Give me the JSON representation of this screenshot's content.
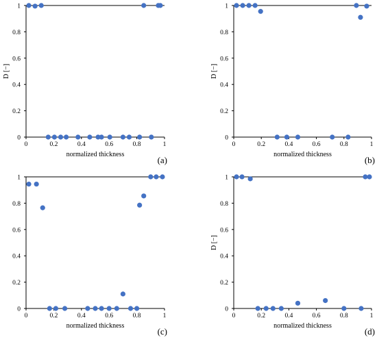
{
  "chart_data": [
    {
      "panel": "a",
      "type": "scatter",
      "xlabel": "normalized thickness",
      "ylabel": "D [−]",
      "xlim": [
        0,
        1
      ],
      "ylim": [
        0,
        1
      ],
      "xticks": [
        "0",
        "0.2",
        "0.4",
        "0.6",
        "0.8",
        "1"
      ],
      "yticks": [
        "0",
        "0.2",
        "0.4",
        "0.6",
        "0.8",
        "1"
      ],
      "grid": false,
      "color": "#4472C4",
      "points": [
        [
          0.02,
          1.0
        ],
        [
          0.065,
          0.995
        ],
        [
          0.11,
          1.0
        ],
        [
          0.16,
          0.0
        ],
        [
          0.205,
          0.0
        ],
        [
          0.25,
          0.0
        ],
        [
          0.29,
          0.0
        ],
        [
          0.375,
          0.0
        ],
        [
          0.46,
          0.0
        ],
        [
          0.52,
          0.0
        ],
        [
          0.545,
          0.0
        ],
        [
          0.605,
          0.0
        ],
        [
          0.7,
          0.0
        ],
        [
          0.745,
          0.0
        ],
        [
          0.82,
          0.0
        ],
        [
          0.905,
          0.0
        ],
        [
          0.85,
          1.0
        ],
        [
          0.955,
          1.0
        ],
        [
          0.97,
          1.0
        ]
      ]
    },
    {
      "panel": "b",
      "type": "scatter",
      "xlabel": "normalized thickness",
      "ylabel": "D [−]",
      "xlim": [
        0,
        1
      ],
      "ylim": [
        0,
        1
      ],
      "xticks": [
        "0",
        "0.2",
        "0.4",
        "0.6",
        "0.8",
        "1"
      ],
      "yticks": [
        "0",
        "0.2",
        "0.4",
        "0.6",
        "0.8",
        "1"
      ],
      "grid": false,
      "color": "#4472C4",
      "points": [
        [
          0.02,
          1.0
        ],
        [
          0.065,
          1.0
        ],
        [
          0.11,
          1.0
        ],
        [
          0.155,
          1.0
        ],
        [
          0.195,
          0.955
        ],
        [
          0.315,
          0.0
        ],
        [
          0.385,
          0.0
        ],
        [
          0.465,
          0.0
        ],
        [
          0.715,
          0.0
        ],
        [
          0.83,
          0.0
        ],
        [
          0.89,
          1.0
        ],
        [
          0.92,
          0.91
        ],
        [
          0.965,
          0.995
        ]
      ]
    },
    {
      "panel": "c",
      "type": "scatter",
      "xlabel": "normalized thickness",
      "ylabel": "",
      "xlim": [
        0,
        1
      ],
      "ylim": [
        0,
        1
      ],
      "xticks": [
        "0",
        "0.2",
        "0.4",
        "0.6",
        "0.8",
        "1"
      ],
      "yticks": [
        "0",
        "0.2",
        "0.4",
        "0.6",
        "0.8",
        "1"
      ],
      "grid": false,
      "color": "#4472C4",
      "points": [
        [
          0.02,
          0.945
        ],
        [
          0.075,
          0.945
        ],
        [
          0.12,
          0.765
        ],
        [
          0.17,
          0.0
        ],
        [
          0.215,
          0.0
        ],
        [
          0.28,
          0.0
        ],
        [
          0.445,
          0.0
        ],
        [
          0.5,
          0.0
        ],
        [
          0.545,
          0.0
        ],
        [
          0.6,
          0.0
        ],
        [
          0.655,
          0.0
        ],
        [
          0.7,
          0.11
        ],
        [
          0.755,
          0.0
        ],
        [
          0.8,
          0.0
        ],
        [
          0.82,
          0.785
        ],
        [
          0.85,
          0.855
        ],
        [
          0.9,
          1.0
        ],
        [
          0.94,
          1.0
        ],
        [
          0.985,
          1.0
        ]
      ]
    },
    {
      "panel": "d",
      "type": "scatter",
      "xlabel": "normalized thickness",
      "ylabel": "D [−]",
      "xlim": [
        0,
        1
      ],
      "ylim": [
        0,
        1
      ],
      "xticks": [
        "0",
        "0.2",
        "0.4",
        "0.6",
        "0.8",
        "1"
      ],
      "yticks": [
        "0",
        "0.2",
        "0.4",
        "0.6",
        "0.8",
        "1"
      ],
      "grid": false,
      "color": "#4472C4",
      "points": [
        [
          0.02,
          1.0
        ],
        [
          0.06,
          1.0
        ],
        [
          0.12,
          0.985
        ],
        [
          0.175,
          0.0
        ],
        [
          0.235,
          0.0
        ],
        [
          0.285,
          0.0
        ],
        [
          0.345,
          0.0
        ],
        [
          0.465,
          0.04
        ],
        [
          0.665,
          0.06
        ],
        [
          0.8,
          0.0
        ],
        [
          0.925,
          0.0
        ],
        [
          0.955,
          1.0
        ],
        [
          0.985,
          1.0
        ]
      ]
    }
  ],
  "panel_labels": [
    "(a)",
    "(b)",
    "(c)",
    "(d)"
  ]
}
